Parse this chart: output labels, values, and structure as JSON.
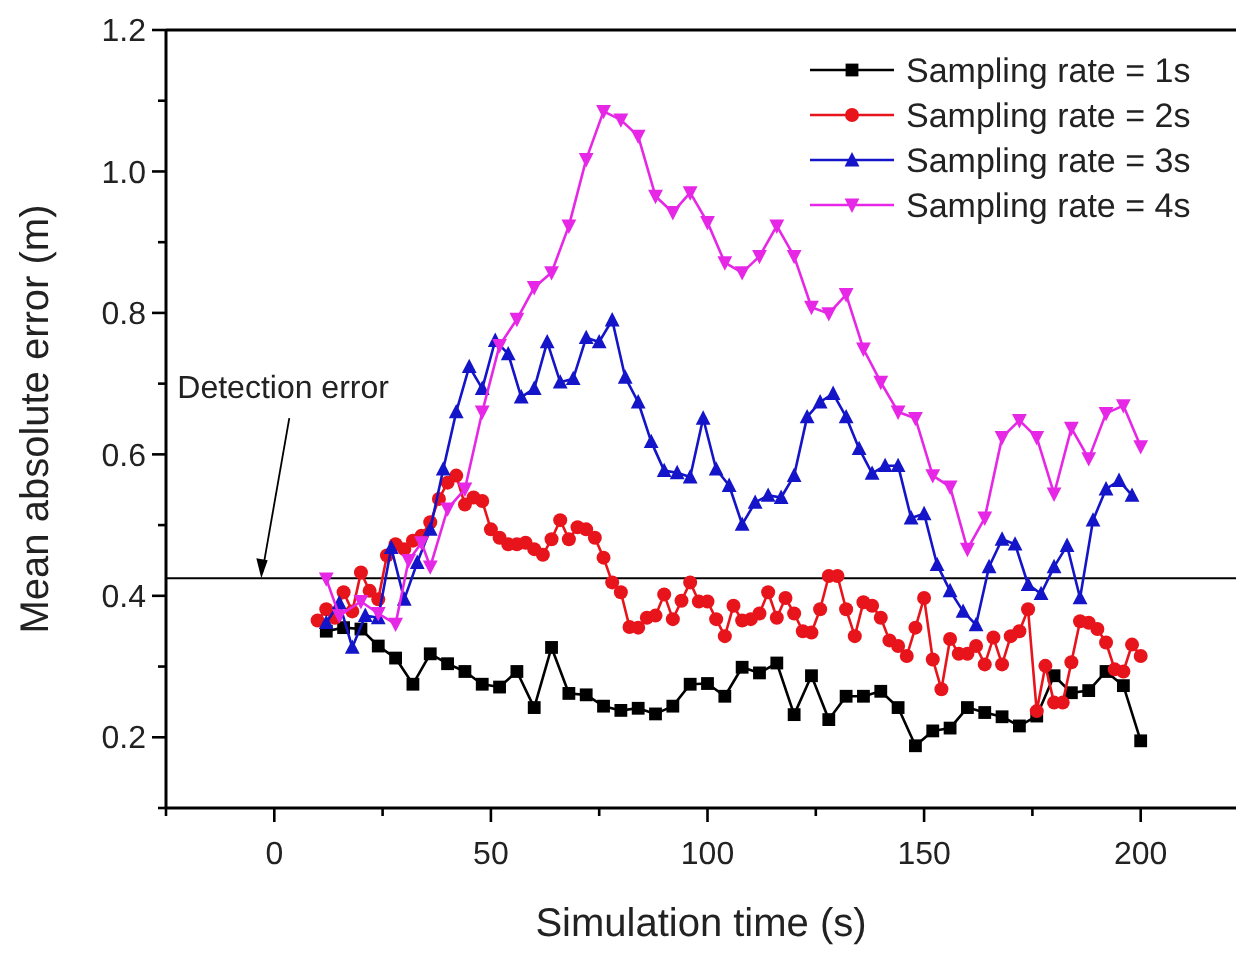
{
  "chart_data": {
    "type": "line",
    "xlabel": "Simulation time (s)",
    "ylabel": "Mean absolute error (m)",
    "xlim": [
      -25,
      222
    ],
    "xticks": [
      {
        "value": -25,
        "label": null
      },
      0,
      {
        "value": 25,
        "label": null
      },
      50,
      {
        "value": 75,
        "label": null
      },
      100,
      {
        "value": 125,
        "label": null
      },
      150,
      {
        "value": 175,
        "label": null
      },
      200
    ],
    "ylim": [
      0.1,
      1.2
    ],
    "yticks": [
      {
        "value": 0.1,
        "label": null
      },
      {
        "value": 0.2,
        "label": "0.2"
      },
      {
        "value": 0.3,
        "label": null
      },
      {
        "value": 0.4,
        "label": "0.4"
      },
      {
        "value": 0.5,
        "label": null
      },
      {
        "value": 0.6,
        "label": "0.6"
      },
      {
        "value": 0.7,
        "label": null
      },
      {
        "value": 0.8,
        "label": "0.8"
      },
      {
        "value": 0.9,
        "label": null
      },
      {
        "value": 1.0,
        "label": "1.0"
      },
      {
        "value": 1.1,
        "label": null
      },
      {
        "value": 1.2,
        "label": "1.2"
      }
    ],
    "grid": false,
    "legend": "top right",
    "line_style": "solid",
    "ref_lines": [
      {
        "axis": "y",
        "value": 0.425,
        "color": "#000000"
      }
    ],
    "annotations": [
      {
        "text": "Detection error",
        "x": -3,
        "y": 0.425
      }
    ],
    "series": [
      {
        "name": "Sampling rate = 1s",
        "color": "#000000",
        "marker": "square",
        "x": [
          12,
          16,
          20,
          24,
          28,
          32,
          36,
          40,
          44,
          48,
          52,
          56,
          60,
          64,
          68,
          72,
          76,
          80,
          84,
          88,
          92,
          96,
          100,
          104,
          108,
          112,
          116,
          120,
          124,
          128,
          132,
          136,
          140,
          144,
          148,
          152,
          156,
          160,
          164,
          168,
          172,
          176,
          180,
          184,
          188,
          192,
          196,
          200
        ],
        "values": [
          0.35,
          0.355,
          0.353,
          0.329,
          0.312,
          0.275,
          0.318,
          0.304,
          0.293,
          0.275,
          0.271,
          0.293,
          0.242,
          0.327,
          0.262,
          0.26,
          0.244,
          0.238,
          0.241,
          0.233,
          0.244,
          0.275,
          0.276,
          0.258,
          0.299,
          0.291,
          0.305,
          0.232,
          0.287,
          0.225,
          0.258,
          0.258,
          0.265,
          0.242,
          0.188,
          0.209,
          0.213,
          0.242,
          0.235,
          0.229,
          0.216,
          0.23,
          0.287,
          0.263,
          0.266,
          0.293,
          0.273,
          0.195
        ]
      },
      {
        "name": "Sampling rate = 2s",
        "color": "#e8141c",
        "marker": "circle",
        "x": [
          10,
          12,
          14,
          16,
          18,
          20,
          22,
          24,
          26,
          28,
          30,
          32,
          34,
          36,
          38,
          40,
          42,
          44,
          46,
          48,
          50,
          52,
          54,
          56,
          58,
          60,
          62,
          64,
          66,
          68,
          70,
          72,
          74,
          76,
          78,
          80,
          82,
          84,
          86,
          88,
          90,
          92,
          94,
          96,
          98,
          100,
          102,
          104,
          106,
          108,
          110,
          112,
          114,
          116,
          118,
          120,
          122,
          124,
          126,
          128,
          130,
          132,
          134,
          136,
          138,
          140,
          142,
          144,
          146,
          148,
          150,
          152,
          154,
          156,
          158,
          160,
          162,
          164,
          166,
          168,
          170,
          172,
          174,
          176,
          178,
          180,
          182,
          184,
          186,
          188,
          190,
          192,
          194,
          196,
          198,
          200
        ],
        "values": [
          0.365,
          0.381,
          0.369,
          0.405,
          0.378,
          0.433,
          0.407,
          0.395,
          0.457,
          0.473,
          0.466,
          0.478,
          0.485,
          0.504,
          0.537,
          0.56,
          0.57,
          0.529,
          0.539,
          0.534,
          0.494,
          0.482,
          0.473,
          0.473,
          0.475,
          0.466,
          0.458,
          0.48,
          0.507,
          0.48,
          0.497,
          0.494,
          0.482,
          0.454,
          0.419,
          0.405,
          0.356,
          0.355,
          0.369,
          0.372,
          0.402,
          0.367,
          0.393,
          0.419,
          0.392,
          0.392,
          0.367,
          0.343,
          0.386,
          0.365,
          0.367,
          0.375,
          0.405,
          0.369,
          0.397,
          0.375,
          0.35,
          0.348,
          0.381,
          0.428,
          0.428,
          0.381,
          0.343,
          0.391,
          0.386,
          0.369,
          0.337,
          0.329,
          0.315,
          0.355,
          0.397,
          0.31,
          0.268,
          0.339,
          0.318,
          0.318,
          0.329,
          0.303,
          0.341,
          0.303,
          0.343,
          0.35,
          0.381,
          0.237,
          0.301,
          0.249,
          0.249,
          0.306,
          0.364,
          0.362,
          0.353,
          0.334,
          0.296,
          0.293,
          0.331,
          0.315
        ]
      },
      {
        "name": "Sampling rate = 3s",
        "color": "#1414c8",
        "marker": "triangle",
        "x": [
          12,
          15,
          18,
          21,
          24,
          27,
          30,
          33,
          36,
          39,
          42,
          45,
          48,
          51,
          54,
          57,
          60,
          63,
          66,
          69,
          72,
          75,
          78,
          81,
          84,
          87,
          90,
          93,
          96,
          99,
          102,
          105,
          108,
          111,
          114,
          117,
          120,
          123,
          126,
          129,
          132,
          135,
          138,
          141,
          144,
          147,
          150,
          153,
          156,
          159,
          162,
          165,
          168,
          171,
          174,
          177,
          180,
          183,
          186,
          189,
          192,
          195,
          198
        ],
        "values": [
          0.362,
          0.39,
          0.327,
          0.372,
          0.369,
          0.468,
          0.395,
          0.447,
          0.494,
          0.579,
          0.66,
          0.724,
          0.693,
          0.761,
          0.742,
          0.681,
          0.693,
          0.759,
          0.702,
          0.707,
          0.765,
          0.759,
          0.79,
          0.709,
          0.674,
          0.618,
          0.577,
          0.574,
          0.568,
          0.651,
          0.579,
          0.556,
          0.501,
          0.532,
          0.542,
          0.539,
          0.57,
          0.653,
          0.674,
          0.686,
          0.653,
          0.608,
          0.573,
          0.584,
          0.584,
          0.51,
          0.516,
          0.444,
          0.407,
          0.378,
          0.359,
          0.441,
          0.48,
          0.473,
          0.416,
          0.403,
          0.441,
          0.471,
          0.397,
          0.507,
          0.551,
          0.563,
          0.542
        ]
      },
      {
        "name": "Sampling rate = 4s",
        "color": "#e628e6",
        "marker": "triangle-down",
        "x": [
          12,
          15,
          20,
          24,
          28,
          31,
          34,
          36,
          40,
          44,
          48,
          52,
          56,
          60,
          64,
          68,
          72,
          76,
          80,
          84,
          88,
          92,
          96,
          100,
          104,
          108,
          112,
          116,
          120,
          124,
          128,
          132,
          136,
          140,
          144,
          148,
          152,
          156,
          160,
          164,
          168,
          172,
          176,
          180,
          184,
          188,
          192,
          196,
          200
        ],
        "values": [
          0.424,
          0.372,
          0.392,
          0.375,
          0.36,
          0.45,
          0.475,
          0.441,
          0.523,
          0.551,
          0.66,
          0.754,
          0.791,
          0.836,
          0.857,
          0.923,
          1.017,
          1.085,
          1.073,
          1.05,
          0.965,
          0.942,
          0.97,
          0.928,
          0.871,
          0.857,
          0.88,
          0.923,
          0.88,
          0.808,
          0.799,
          0.826,
          0.749,
          0.702,
          0.66,
          0.651,
          0.57,
          0.554,
          0.466,
          0.51,
          0.624,
          0.648,
          0.624,
          0.544,
          0.637,
          0.594,
          0.658,
          0.669,
          0.611
        ]
      }
    ]
  }
}
